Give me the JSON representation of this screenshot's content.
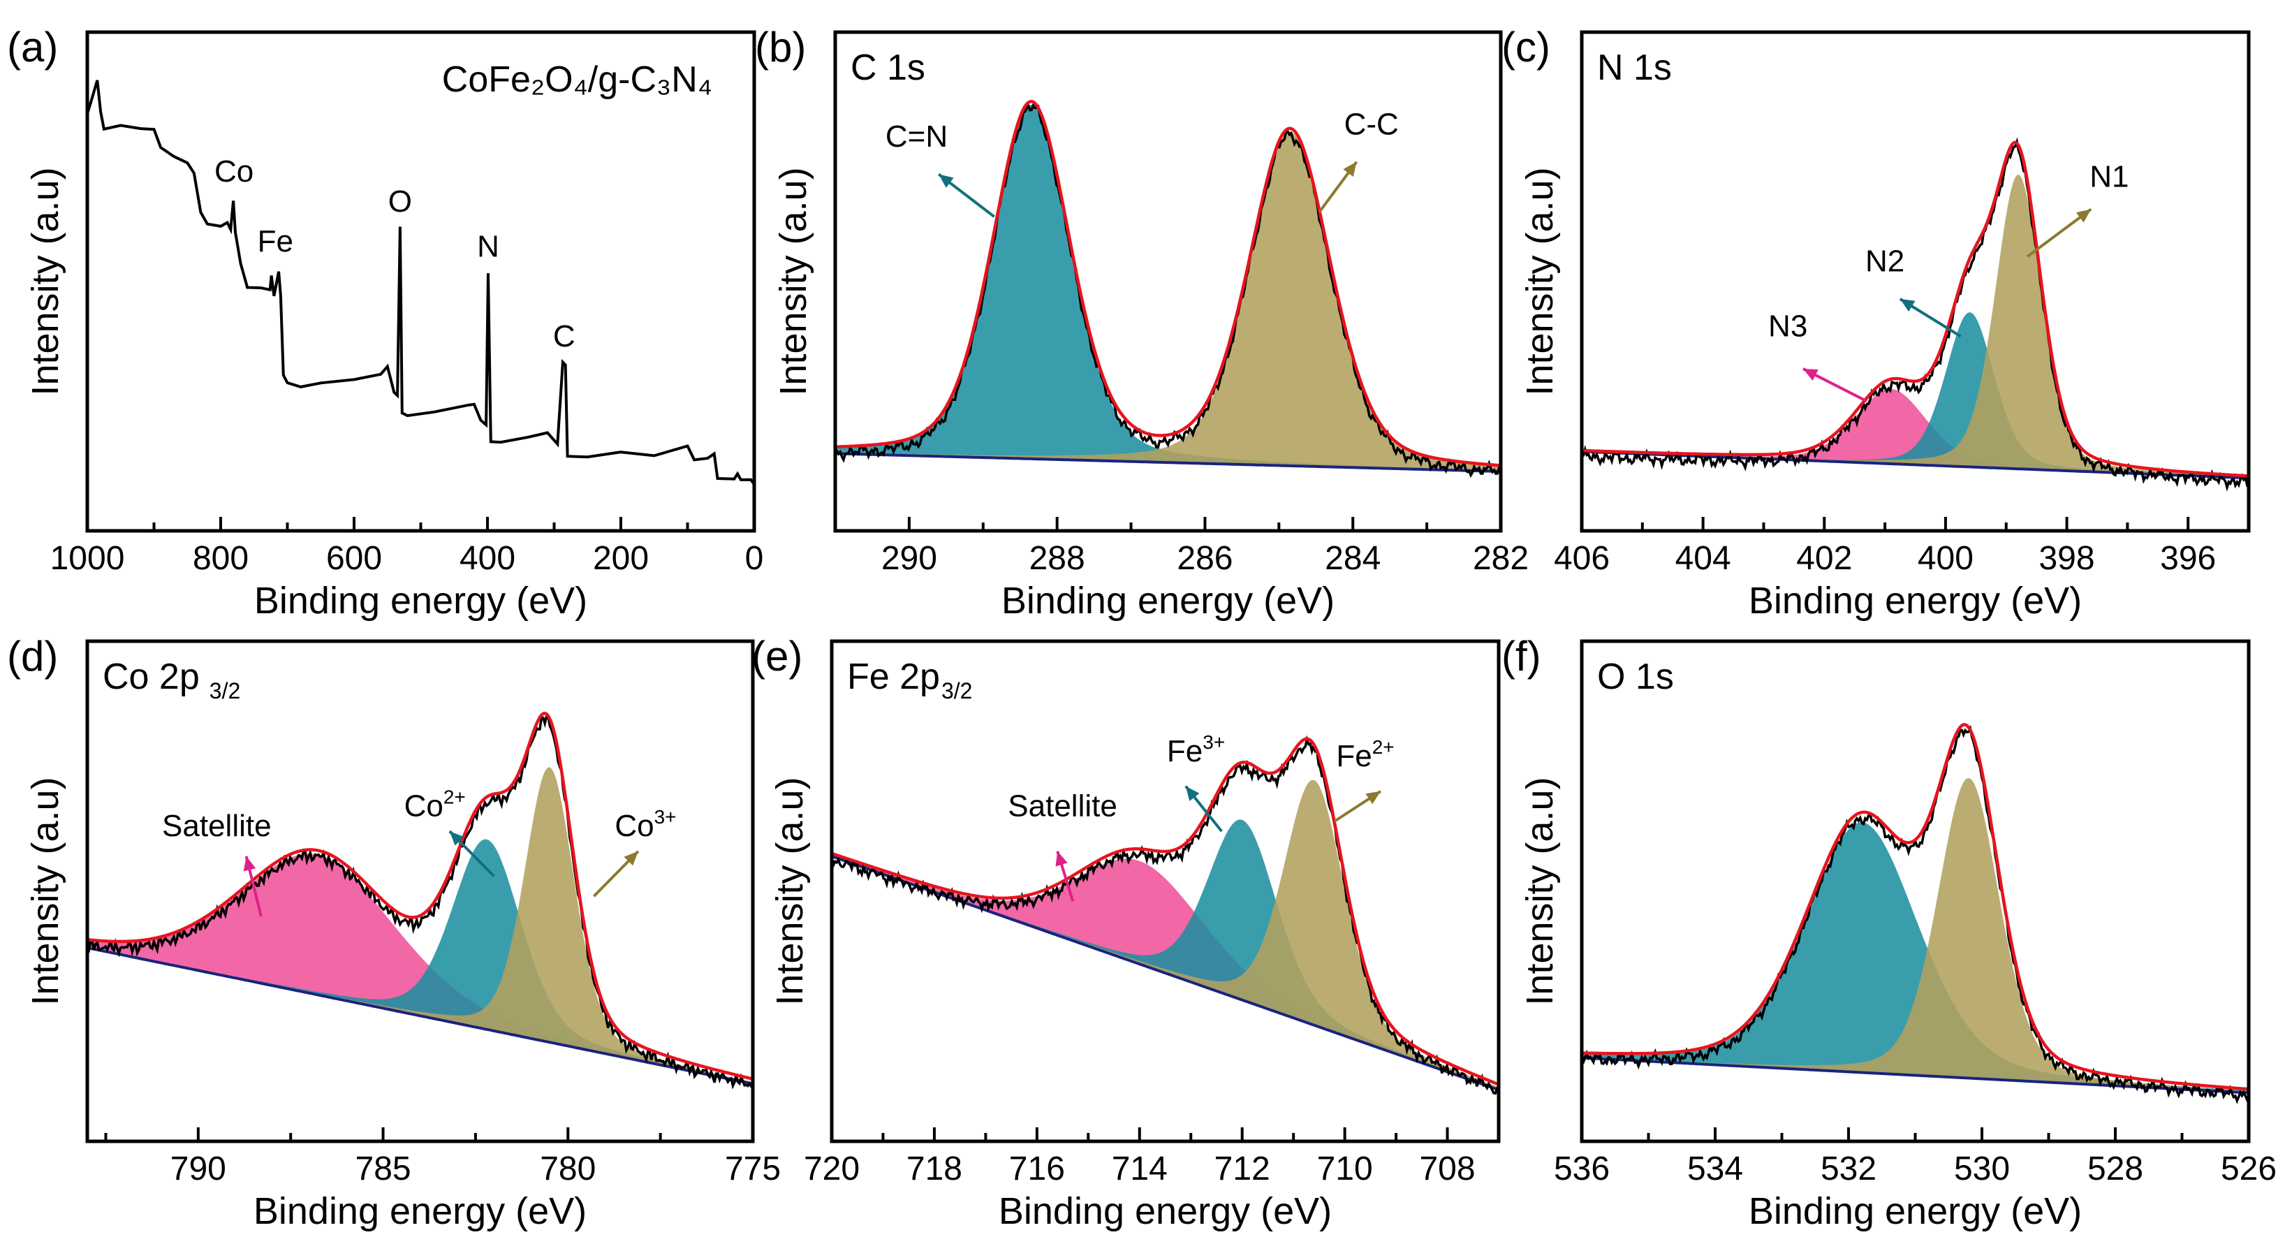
{
  "chart_data": [
    {
      "panel": "(a)",
      "type": "line",
      "title": "",
      "sample_label": "CoFe₂O₄/g-C₃N₄",
      "xlabel": "Binding energy (eV)",
      "ylabel": "Intensity (a.u)",
      "xlim": [
        1000,
        0
      ],
      "ylim": [
        0,
        100
      ],
      "xticks": [
        1000,
        800,
        600,
        400,
        200,
        0
      ],
      "minor_step": 100,
      "grid": false,
      "series": [
        {
          "color": "#000000",
          "x": [
            1000,
            995,
            985,
            980,
            975,
            950,
            920,
            900,
            890,
            870,
            850,
            840,
            830,
            820,
            800,
            790,
            785,
            781,
            778,
            770,
            760,
            740,
            726,
            724,
            720,
            713,
            710,
            706,
            700,
            680,
            650,
            600,
            560,
            550,
            540,
            535,
            531,
            528,
            520,
            480,
            430,
            420,
            410,
            402,
            399,
            395,
            380,
            340,
            310,
            295,
            287,
            283,
            280,
            250,
            200,
            150,
            100,
            90,
            70,
            60,
            55,
            30,
            25,
            20,
            5,
            0
          ],
          "y": [
            84,
            85.6,
            90,
            84,
            81,
            81,
            80.5,
            80,
            77,
            75,
            73.7,
            72,
            64,
            62,
            61,
            61.5,
            61,
            66,
            60,
            54,
            49,
            49,
            48.4,
            51.6,
            47,
            52,
            47,
            31,
            30,
            29,
            30,
            30.6,
            31.4,
            33,
            28,
            27,
            60.7,
            24,
            23,
            23.9,
            24.7,
            25.5,
            22.3,
            21.5,
            51.6,
            17.6,
            17.6,
            18.7,
            19.5,
            17.6,
            34,
            33,
            15.2,
            14.8,
            15.6,
            15.2,
            16.8,
            14.4,
            14.4,
            15.6,
            10.4,
            10.4,
            11.6,
            10,
            10.4,
            9.3
          ]
        }
      ],
      "annotations": [
        {
          "text": "Co",
          "x": 780,
          "y": 70
        },
        {
          "text": "Fe",
          "x": 718,
          "y": 56
        },
        {
          "text": "O",
          "x": 531,
          "y": 64
        },
        {
          "text": "N",
          "x": 399,
          "y": 55
        },
        {
          "text": "C",
          "x": 285,
          "y": 37
        }
      ]
    },
    {
      "panel": "(b)",
      "type": "area",
      "title": "C 1s",
      "title_sub": "",
      "xlabel": "Binding energy (eV)",
      "ylabel": "Intensity (a.u)",
      "xlim": [
        291,
        282
      ],
      "ylim": [
        0,
        100
      ],
      "xticks": [
        290,
        288,
        286,
        284,
        282
      ],
      "minor_step": 1,
      "grid": false,
      "background": [
        15.5,
        11.9
      ],
      "peaks": [
        {
          "name": "C=N",
          "center": 288.35,
          "height": 71,
          "fwhm": 1.25,
          "color": "#1f8fa0"
        },
        {
          "name": "C-C",
          "center": 284.85,
          "height": 67,
          "fwhm": 1.3,
          "color": "#b2a15f"
        }
      ],
      "annotations": [
        {
          "text": "C=N",
          "sup": "",
          "x": 289.9,
          "y": 77,
          "arrow_from": [
            288.85,
            63
          ],
          "arrow_to": [
            289.6,
            71.5
          ],
          "color": "#12707d"
        },
        {
          "text": "C-C",
          "sup": "",
          "x": 283.75,
          "y": 79.5,
          "arrow_from": [
            284.45,
            64
          ],
          "arrow_to": [
            283.95,
            74
          ],
          "color": "#8c7a2e"
        }
      ]
    },
    {
      "panel": "(c)",
      "type": "area",
      "title": "N 1s",
      "title_sub": "",
      "xlabel": "Binding energy (eV)",
      "ylabel": "Intensity (a.u)",
      "xlim": [
        406,
        395
      ],
      "ylim": [
        0,
        100
      ],
      "xticks": [
        406,
        404,
        402,
        400,
        398,
        396
      ],
      "minor_step": 1,
      "grid": false,
      "background": [
        15.9,
        10.6
      ],
      "peaks": [
        {
          "name": "N3",
          "center": 400.9,
          "height": 15,
          "fwhm": 1.4,
          "color": "#f0529a"
        },
        {
          "name": "N2",
          "center": 399.6,
          "height": 31,
          "fwhm": 0.95,
          "color": "#1f8fa0"
        },
        {
          "name": "N1",
          "center": 398.8,
          "height": 59,
          "fwhm": 0.9,
          "color": "#b2a15f"
        }
      ],
      "annotations": [
        {
          "text": "N1",
          "sup": "",
          "x": 397.3,
          "y": 69,
          "arrow_from": [
            398.65,
            55
          ],
          "arrow_to": [
            397.6,
            64.5
          ],
          "color": "#8c7a2e"
        },
        {
          "text": "N2",
          "sup": "",
          "x": 401.0,
          "y": 52,
          "arrow_from": [
            399.75,
            39
          ],
          "arrow_to": [
            400.75,
            46.5
          ],
          "color": "#12707d"
        },
        {
          "text": "N3",
          "sup": "",
          "x": 402.6,
          "y": 39,
          "arrow_from": [
            401.3,
            26
          ],
          "arrow_to": [
            402.35,
            32.5
          ],
          "color": "#e0208a"
        }
      ]
    },
    {
      "panel": "(d)",
      "type": "area",
      "title": "Co 2p",
      "title_sub": "3/2",
      "xlabel": "Binding energy (eV)",
      "ylabel": "Intensity (a.u)",
      "xlim": [
        793,
        775
      ],
      "ylim": [
        0,
        100
      ],
      "xticks": [
        790,
        785,
        780,
        775
      ],
      "minor_step": 2.5,
      "grid": false,
      "background": [
        38.7,
        11.5
      ],
      "peaks": [
        {
          "name": "Satellite",
          "center": 786.8,
          "height": 28,
          "fwhm": 5.0,
          "color": "#f0529a"
        },
        {
          "name": "Co²⁺",
          "center": 782.2,
          "height": 38,
          "fwhm": 2.2,
          "color": "#1f8fa0"
        },
        {
          "name": "Co³⁺",
          "center": 780.5,
          "height": 55,
          "fwhm": 1.6,
          "color": "#b2a15f"
        }
      ],
      "annotations": [
        {
          "text": "Satellite",
          "sup": "",
          "x": 789.5,
          "y": 61,
          "arrow_from": [
            788.3,
            45
          ],
          "arrow_to": [
            788.7,
            57
          ],
          "color": "#e0208a"
        },
        {
          "text": "Co",
          "sup": "2+",
          "x": 783.6,
          "y": 65,
          "arrow_from": [
            782.0,
            53
          ],
          "arrow_to": [
            783.2,
            62
          ],
          "color": "#12707d"
        },
        {
          "text": "Co",
          "sup": "3+",
          "x": 777.9,
          "y": 61,
          "arrow_from": [
            779.3,
            49
          ],
          "arrow_to": [
            778.1,
            58
          ],
          "color": "#8c7a2e"
        }
      ]
    },
    {
      "panel": "(e)",
      "type": "area",
      "title": "Fe 2p",
      "title_sub": "3/2",
      "xlabel": "Binding energy (eV)",
      "ylabel": "Intensity (a.u)",
      "xlim": [
        720,
        707
      ],
      "ylim": [
        0,
        100
      ],
      "xticks": [
        720,
        718,
        716,
        714,
        712,
        710,
        708
      ],
      "minor_step": 1,
      "grid": false,
      "background": [
        57,
        10.3
      ],
      "peaks": [
        {
          "name": "Satellite",
          "center": 714.0,
          "height": 20.6,
          "fwhm": 3.0,
          "color": "#f0529a"
        },
        {
          "name": "Fe³⁺",
          "center": 712.0,
          "height": 36,
          "fwhm": 1.6,
          "color": "#1f8fa0"
        },
        {
          "name": "Fe²⁺",
          "center": 710.6,
          "height": 49,
          "fwhm": 1.4,
          "color": "#b2a15f"
        }
      ],
      "annotations": [
        {
          "text": "Satellite",
          "sup": "",
          "x": 715.5,
          "y": 65,
          "arrow_from": [
            715.3,
            48
          ],
          "arrow_to": [
            715.6,
            58
          ],
          "color": "#e0208a"
        },
        {
          "text": "Fe",
          "sup": "3+",
          "x": 712.9,
          "y": 76,
          "arrow_from": [
            712.4,
            62
          ],
          "arrow_to": [
            713.1,
            71
          ],
          "color": "#12707d"
        },
        {
          "text": "Fe",
          "sup": "2+",
          "x": 709.6,
          "y": 75,
          "arrow_from": [
            710.2,
            64
          ],
          "arrow_to": [
            709.3,
            70
          ],
          "color": "#8c7a2e"
        }
      ]
    },
    {
      "panel": "(f)",
      "type": "area",
      "title": "O 1s",
      "title_sub": "",
      "xlabel": "Binding energy (eV)",
      "ylabel": "Intensity (a.u)",
      "xlim": [
        536,
        526
      ],
      "ylim": [
        0,
        100
      ],
      "xticks": [
        536,
        534,
        532,
        530,
        528,
        526
      ],
      "minor_step": 1,
      "grid": false,
      "background": [
        16.7,
        9.7
      ],
      "peaks": [
        {
          "name": "",
          "center": 531.8,
          "height": 50,
          "fwhm": 2.0,
          "color": "#1f8fa0"
        },
        {
          "name": "",
          "center": 530.2,
          "height": 60,
          "fwhm": 1.1,
          "color": "#b2a15f"
        }
      ],
      "annotations": []
    }
  ],
  "colors": {
    "envelope": "#e8141e",
    "background_line": "#1a237e",
    "experimental": "#000000"
  }
}
